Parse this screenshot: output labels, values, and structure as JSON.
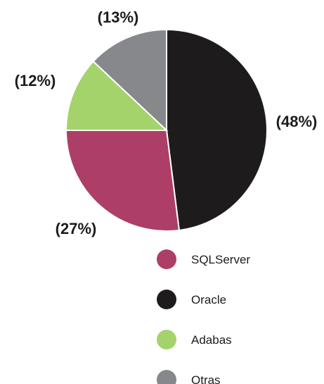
{
  "chart_data": {
    "type": "pie",
    "title": "",
    "start_angle": "12 o'clock",
    "direction": "clockwise",
    "slices": [
      {
        "name": "Oracle",
        "value": 48,
        "label": "(48%)",
        "color": "#1d1b1c"
      },
      {
        "name": "SQLServer",
        "value": 27,
        "label": "(27%)",
        "color": "#ad3e68"
      },
      {
        "name": "Adabas",
        "value": 12,
        "label": "(12%)",
        "color": "#a5d36b"
      },
      {
        "name": "Otras",
        "value": 13,
        "label": "(13%)",
        "color": "#87888b"
      }
    ],
    "legend": {
      "placement": "bottom-center",
      "items": [
        {
          "name": "SQLServer",
          "color": "#ad3e68"
        },
        {
          "name": "Oracle",
          "color": "#1d1b1c"
        },
        {
          "name": "Adabas",
          "color": "#a5d36b"
        },
        {
          "name": "Otras",
          "color": "#87888b"
        }
      ]
    }
  }
}
